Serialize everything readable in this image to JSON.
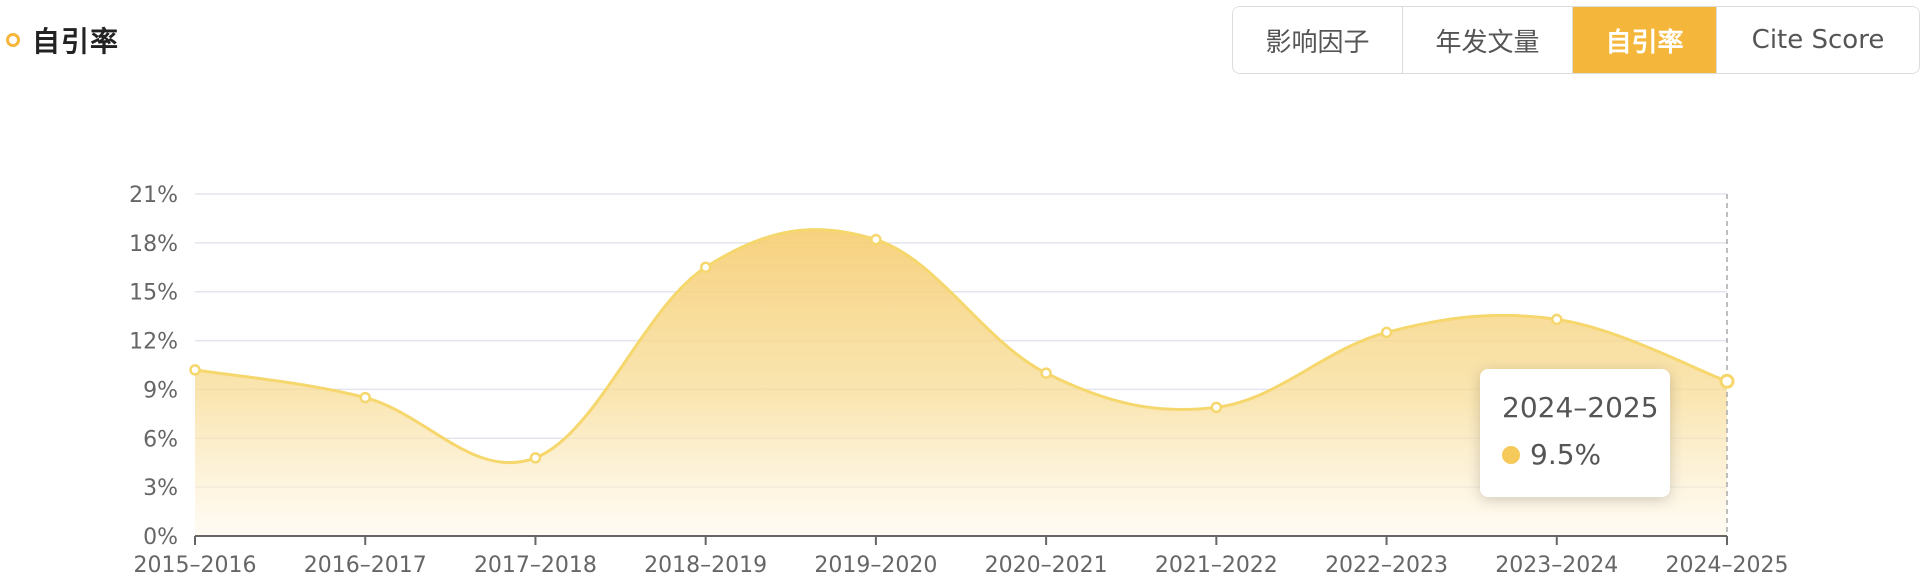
{
  "header": {
    "title": "自引率"
  },
  "tabs": [
    {
      "label": "影响因子",
      "active": false
    },
    {
      "label": "年发文量",
      "active": false
    },
    {
      "label": "自引率",
      "active": true
    },
    {
      "label": "Cite Score",
      "active": false
    }
  ],
  "tooltip": {
    "title": "2024–2025",
    "value": "9.5%"
  },
  "colors": {
    "accent": "#f5b73b",
    "line": "#f5d76e",
    "fill_top": "#f7d37e",
    "fill_bottom": "#fff8ea",
    "grid": "#e3e5ee"
  },
  "chart_data": {
    "type": "area",
    "categories": [
      "2015–2016",
      "2016–2017",
      "2017–2018",
      "2018–2019",
      "2019–2020",
      "2020–2021",
      "2021–2022",
      "2022–2023",
      "2023–2024",
      "2024–2025"
    ],
    "values": [
      10.2,
      8.5,
      4.8,
      16.5,
      18.2,
      10.0,
      7.9,
      12.5,
      13.3,
      9.5
    ],
    "y_ticks": [
      "0%",
      "3%",
      "6%",
      "9%",
      "12%",
      "15%",
      "18%",
      "21%"
    ],
    "ylim": [
      0,
      21
    ],
    "grid": true,
    "smooth": true,
    "highlight_index": 9
  }
}
